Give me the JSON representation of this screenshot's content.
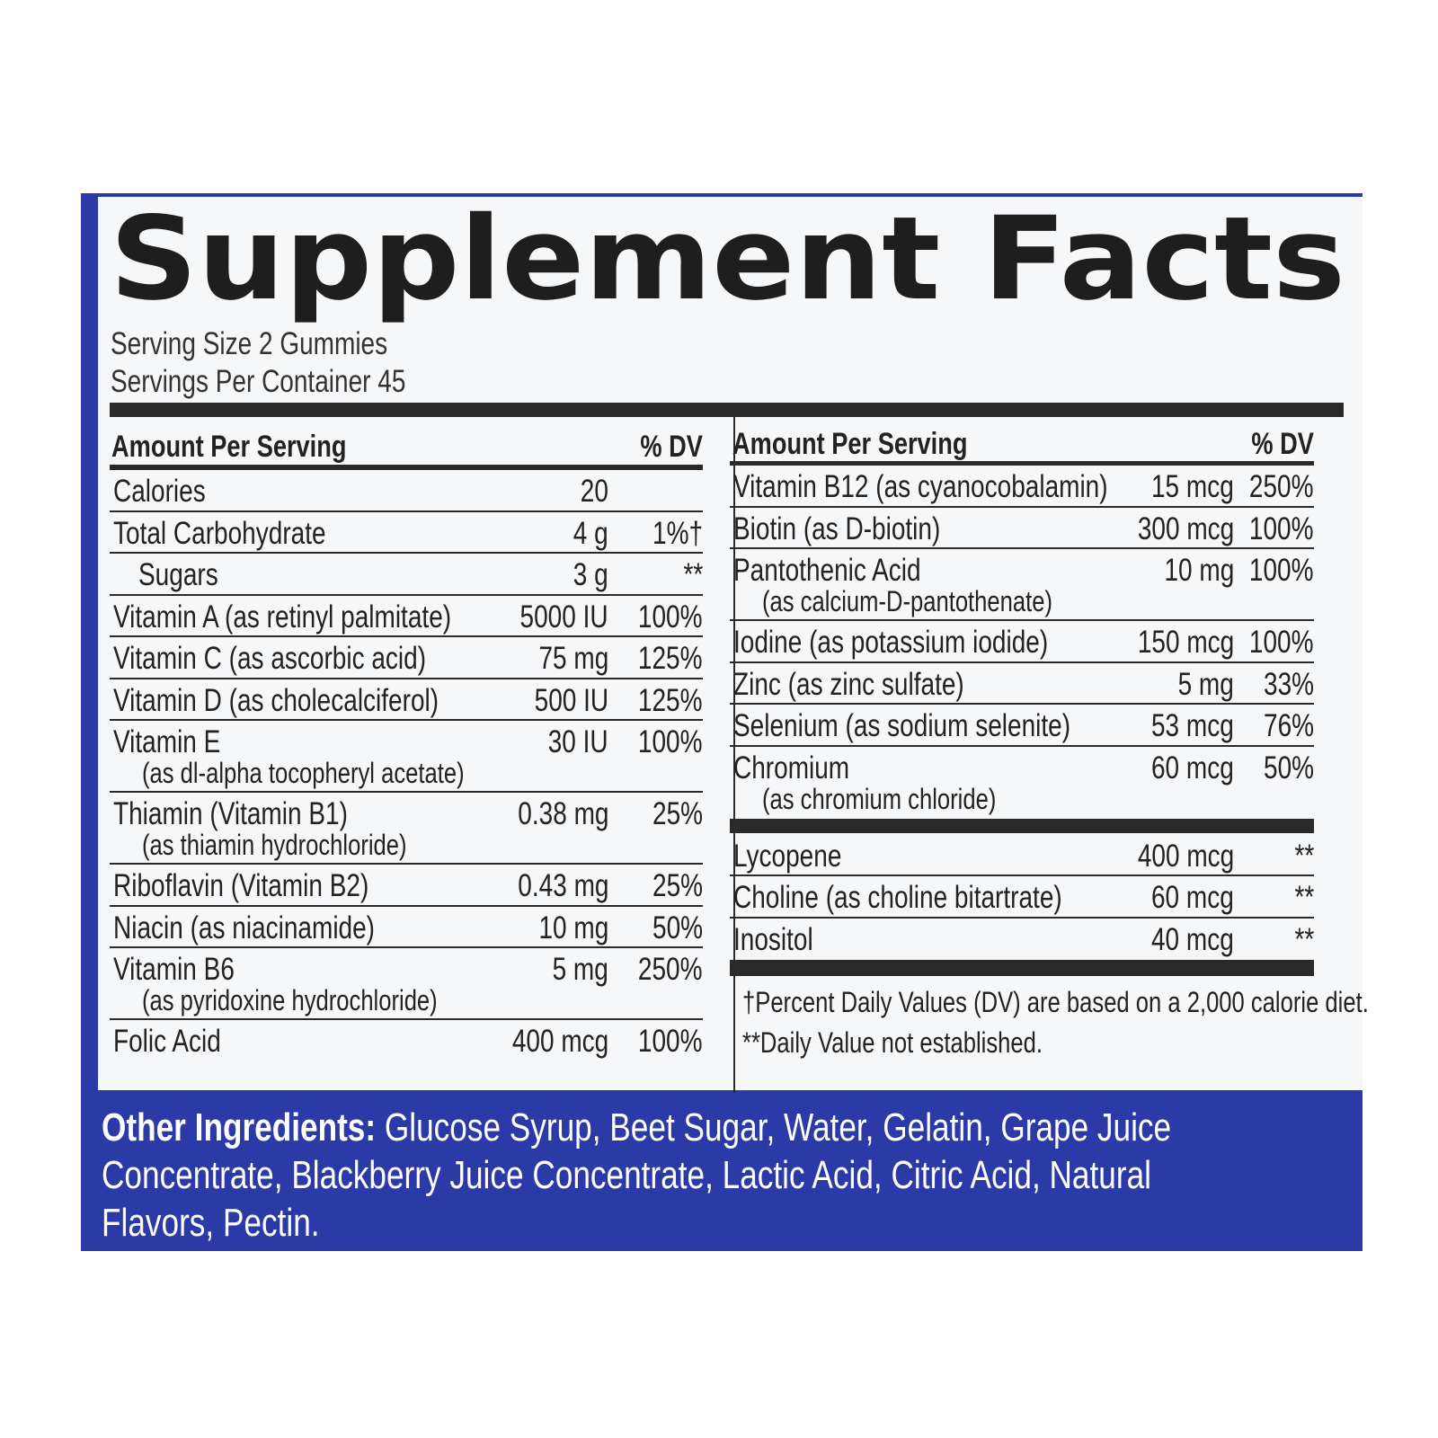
{
  "header": {
    "title": "Supplement Facts",
    "serving_size": "Serving Size 2 Gummies",
    "servings_per_container": "Servings Per Container 45"
  },
  "left_table": {
    "columns": [
      "Amount Per Serving",
      "% DV"
    ],
    "rows": [
      {
        "name": "Calories",
        "amount": "20"
      },
      {
        "name": "Total Carbohydrate",
        "amount": "4 g",
        "dv": "1%†"
      },
      {
        "name": "Sugars",
        "amount": "3 g",
        "dv": "**"
      },
      {
        "name": "Vitamin A (as retinyl palmitate)",
        "amount": "5000 IU",
        "dv": "100%"
      },
      {
        "name": "Vitamin C (as ascorbic acid)",
        "amount": "75 mg",
        "dv": "125%"
      },
      {
        "name": "Vitamin D (as cholecalciferol)",
        "amount": "500 IU",
        "dv": "125%"
      },
      {
        "name": "Vitamin E",
        "note": "(as dl-alpha tocopheryl acetate)",
        "amount": "30 IU",
        "dv": "100%"
      },
      {
        "name": "Thiamin (Vitamin B1)",
        "note": "(as thiamin hydrochloride)",
        "amount": "0.38 mg",
        "dv": "25%"
      },
      {
        "name": "Riboflavin (Vitamin B2)",
        "amount": "0.43 mg",
        "dv": "25%"
      },
      {
        "name": "Niacin (as niacinamide)",
        "amount": "10 mg",
        "dv": "50%"
      },
      {
        "name": "Vitamin B6",
        "note": "(as pyridoxine hydrochloride)",
        "amount": "5 mg",
        "dv": "250%"
      },
      {
        "name": "Folic Acid",
        "amount": "400 mcg",
        "dv": "100%"
      }
    ]
  },
  "right_table": {
    "columns": [
      "Amount Per Serving",
      "% DV"
    ],
    "rows": [
      {
        "name": "Vitamin B12 (as cyanocobalamin)",
        "amount": "15 mcg",
        "dv": "250%"
      },
      {
        "name": "Biotin (as D-biotin)",
        "amount": "300 mcg",
        "dv": "100%"
      },
      {
        "name": "Pantothenic Acid",
        "note": "(as calcium-D-pantothenate)",
        "amount": "10 mg",
        "dv": "100%"
      },
      {
        "name": "Iodine (as potassium iodide)",
        "amount": "150 mcg",
        "dv": "100%"
      },
      {
        "name": "Zinc (as zinc sulfate)",
        "amount": "5 mg",
        "dv": "33%"
      },
      {
        "name": "Selenium (as sodium selenite)",
        "amount": "53 mcg",
        "dv": "76%"
      },
      {
        "name": "Chromium",
        "note": "(as chromium chloride)",
        "amount": "60 mcg",
        "dv": "50%"
      }
    ],
    "rows2": [
      {
        "name": "Lycopene",
        "amount": "400 mcg",
        "dv": "**"
      },
      {
        "name": "Choline (as choline bitartrate)",
        "amount": "60 mcg",
        "dv": "**"
      },
      {
        "name": "Inositol",
        "amount": "40 mcg",
        "dv": "**"
      }
    ]
  },
  "footnotes": [
    "†Percent Daily Values (DV) are based on a 2,000 calorie diet.",
    "**Daily Value not established."
  ],
  "other_ingredients": {
    "label": "Other Ingredients:",
    "text": "Glucose Syrup, Beet Sugar, Water, Gelatin, Grape Juice Concentrate, Blackberry Juice Concentrate, Lactic Acid, Citric Acid, Natural Flavors, Pectin."
  }
}
